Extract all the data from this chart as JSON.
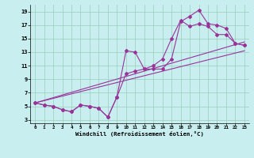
{
  "bg_color": "#c8eef0",
  "line_color": "#993399",
  "grid_color": "#99ccbb",
  "xlabel": "Windchill (Refroidissement éolien,°C)",
  "xlim": [
    -0.5,
    23.5
  ],
  "ylim": [
    2.5,
    20.0
  ],
  "yticks": [
    3,
    5,
    7,
    9,
    11,
    13,
    15,
    17,
    19
  ],
  "xticks": [
    0,
    1,
    2,
    3,
    4,
    5,
    6,
    7,
    8,
    9,
    10,
    11,
    12,
    13,
    14,
    15,
    16,
    17,
    18,
    19,
    20,
    21,
    22,
    23
  ],
  "curve_upper_x": [
    0,
    1,
    2,
    3,
    4,
    5,
    6,
    7,
    8,
    9,
    10,
    11,
    12,
    13,
    14,
    15,
    16,
    17,
    18,
    19,
    20,
    21,
    22,
    23
  ],
  "curve_upper_y": [
    5.5,
    5.2,
    5.0,
    4.5,
    4.2,
    5.2,
    5.0,
    4.7,
    3.4,
    6.4,
    13.2,
    13.0,
    10.5,
    10.5,
    10.5,
    12.0,
    17.5,
    18.3,
    19.2,
    17.2,
    17.0,
    16.5,
    14.3,
    14.0
  ],
  "curve_lower_x": [
    0,
    1,
    2,
    3,
    4,
    5,
    6,
    7,
    8,
    9,
    10,
    11,
    12,
    13,
    14,
    15,
    16,
    17,
    18,
    19,
    20,
    21,
    22,
    23
  ],
  "curve_lower_y": [
    5.5,
    5.2,
    5.0,
    4.5,
    4.2,
    5.2,
    5.0,
    4.7,
    3.4,
    6.4,
    9.8,
    10.2,
    10.5,
    11.0,
    12.0,
    15.0,
    17.7,
    16.8,
    17.2,
    16.8,
    15.6,
    15.6,
    14.3,
    14.0
  ],
  "trend1_x": [
    0,
    23
  ],
  "trend1_y": [
    5.5,
    13.2
  ],
  "trend2_x": [
    0,
    23
  ],
  "trend2_y": [
    5.5,
    14.5
  ]
}
